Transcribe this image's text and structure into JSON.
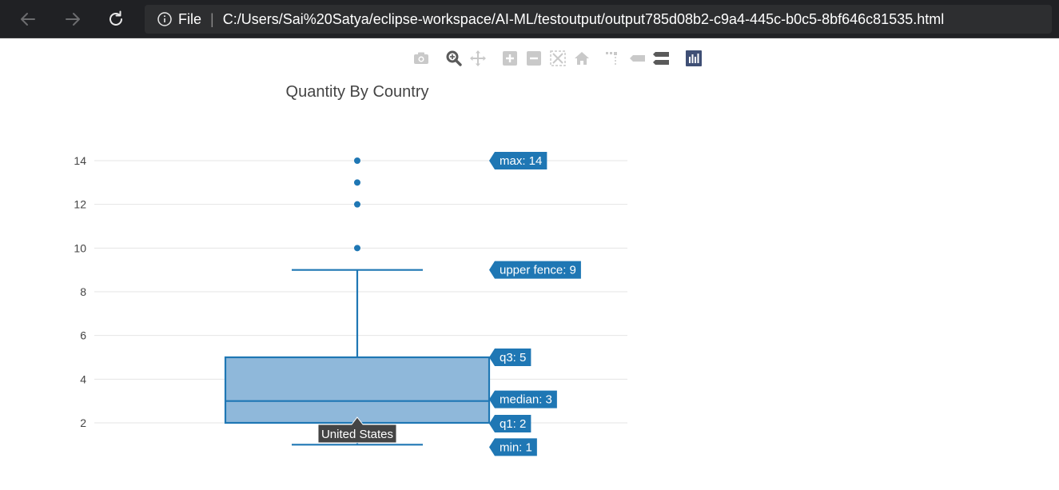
{
  "browser": {
    "file_label": "File",
    "separator": "|",
    "url": "C:/Users/Sai%20Satya/eclipse-workspace/AI-ML/testoutput/output785d08b2-c9a4-445c-b0c5-8bf646c81535.html",
    "back_icon": "arrow-left-icon",
    "forward_icon": "arrow-right-icon",
    "reload_icon": "reload-icon",
    "info_icon": "info-icon"
  },
  "modebar": {
    "buttons": [
      "camera-icon",
      "zoom-icon",
      "pan-icon",
      "zoom-in-icon",
      "zoom-out-icon",
      "autoscale-icon",
      "home-icon",
      "spikelines-icon",
      "hover-closest-icon",
      "hover-compare-icon",
      "plotly-logo-icon"
    ]
  },
  "colors": {
    "box_fill": "#8fb8da",
    "box_line": "#1f77b4",
    "grid": "#e5e5e5",
    "label_bg": "#1f77b4",
    "tooltip_bg": "#444444",
    "title": "#444444"
  },
  "chart_data": {
    "type": "box",
    "title": "Quantity By Country",
    "xlabel": "",
    "ylabel": "",
    "categories": [
      "United States"
    ],
    "ylim": [
      0.2,
      15.5
    ],
    "yticks": [
      2,
      4,
      6,
      8,
      10,
      12,
      14
    ],
    "grid": true,
    "series": [
      {
        "category": "United States",
        "min": 1,
        "q1": 2,
        "median": 3,
        "q3": 5,
        "upper_fence": 9,
        "max": 14,
        "outliers": [
          10,
          12,
          13,
          14
        ]
      }
    ],
    "hover_labels": [
      {
        "key": "max",
        "text": "max: 14",
        "value": 14
      },
      {
        "key": "upper_fence",
        "text": "upper fence: 9",
        "value": 9
      },
      {
        "key": "q3",
        "text": "q3: 5",
        "value": 5
      },
      {
        "key": "median",
        "text": "median: 3",
        "value": 3
      },
      {
        "key": "q1",
        "text": "q1: 2",
        "value": 2
      },
      {
        "key": "min",
        "text": "min: 1",
        "value": 1
      }
    ],
    "x_tooltip": "United States"
  }
}
